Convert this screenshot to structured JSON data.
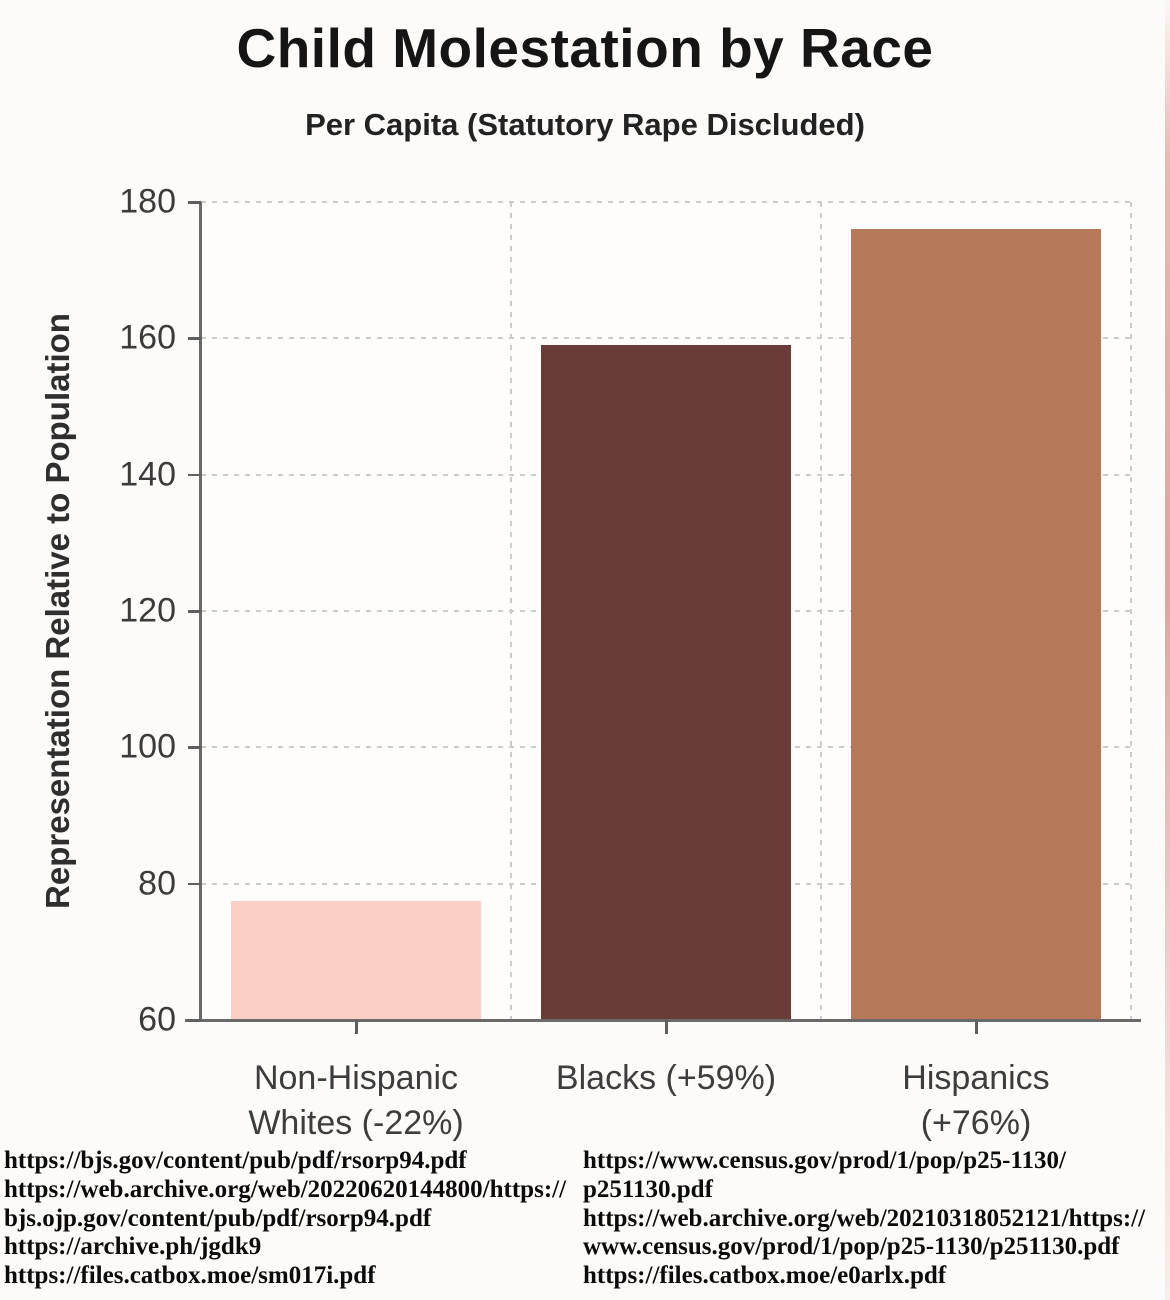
{
  "header": {
    "title": "Child Molestation by Race",
    "subtitle": "Per Capita (Statutory Rape Discluded)"
  },
  "chart_data": {
    "type": "bar",
    "title": "Child Molestation by Race",
    "subtitle": "Per Capita (Statutory Rape Discluded)",
    "xlabel": "",
    "ylabel": "Representation Relative to Population",
    "ylim": [
      60,
      180
    ],
    "yticks": [
      60,
      80,
      100,
      120,
      140,
      160,
      180
    ],
    "grid": "dashed",
    "legend": "none",
    "categories": [
      "Non-Hispanic Whites (-22%)",
      "Blacks (+59%)",
      "Hispanics (+76%)"
    ],
    "tick_labels": [
      "Non-Hispanic\nWhites (-22%)",
      "Blacks (+59%)",
      "Hispanics\n(+76%)"
    ],
    "values": [
      77.5,
      159,
      176
    ],
    "percent_vs_population": [
      "-22%",
      "+59%",
      "+76%"
    ],
    "bar_colors": [
      "#fbcfc6",
      "#6b3b37",
      "#b5795a"
    ]
  },
  "colors": {
    "axis": "#6a6a6a",
    "grid": "#cbcbcb",
    "tick_text": "#3b3b3b",
    "title_text": "#151515",
    "edge_artifact_pink": "#d69692"
  },
  "sources": {
    "left": [
      "https://bjs.gov/content/pub/pdf/rsorp94.pdf",
      "https://web.archive.org/web/20220620144800/https://",
      "bjs.ojp.gov/content/pub/pdf/rsorp94.pdf",
      "https://archive.ph/jgdk9",
      "https://files.catbox.moe/sm017i.pdf"
    ],
    "right": [
      "https://www.census.gov/prod/1/pop/p25-1130/",
      "p251130.pdf",
      "https://web.archive.org/web/20210318052121/https://",
      "www.census.gov/prod/1/pop/p25-1130/p251130.pdf",
      "https://files.catbox.moe/e0arlx.pdf"
    ]
  }
}
